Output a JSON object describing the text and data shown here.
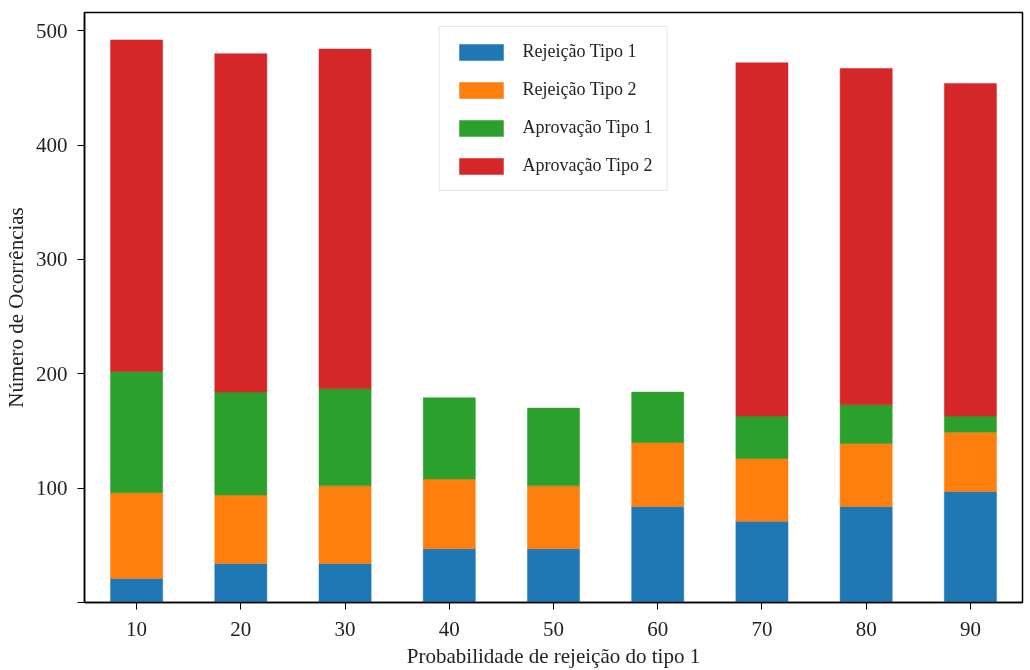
{
  "chart_data": {
    "type": "bar",
    "stacked": true,
    "xlabel": "Probabilidade de rejeição do tipo 1",
    "ylabel": "Número de Ocorrências",
    "categories": [
      "10",
      "20",
      "30",
      "40",
      "50",
      "60",
      "70",
      "80",
      "90"
    ],
    "series": [
      {
        "name": "Rejeição Tipo 1",
        "color": "#1f77b4",
        "values": [
          21,
          34,
          34,
          47,
          47,
          84,
          71,
          84,
          97
        ]
      },
      {
        "name": "Rejeição Tipo 2",
        "color": "#ff7f0e",
        "values": [
          75,
          60,
          68,
          61,
          55,
          56,
          55,
          55,
          52
        ]
      },
      {
        "name": "Aprovação Tipo 1",
        "color": "#2ca02c",
        "values": [
          106,
          90,
          85,
          71,
          68,
          44,
          37,
          34,
          14
        ]
      },
      {
        "name": "Aprovação Tipo 2",
        "color": "#d62728",
        "values": [
          290,
          296,
          297,
          null,
          null,
          null,
          309,
          294,
          291
        ]
      }
    ],
    "ylim": [
      0,
      516
    ],
    "yticks": [
      {
        "value": 0,
        "label": null
      },
      100,
      200,
      300,
      400,
      500
    ],
    "legend": "top"
  }
}
